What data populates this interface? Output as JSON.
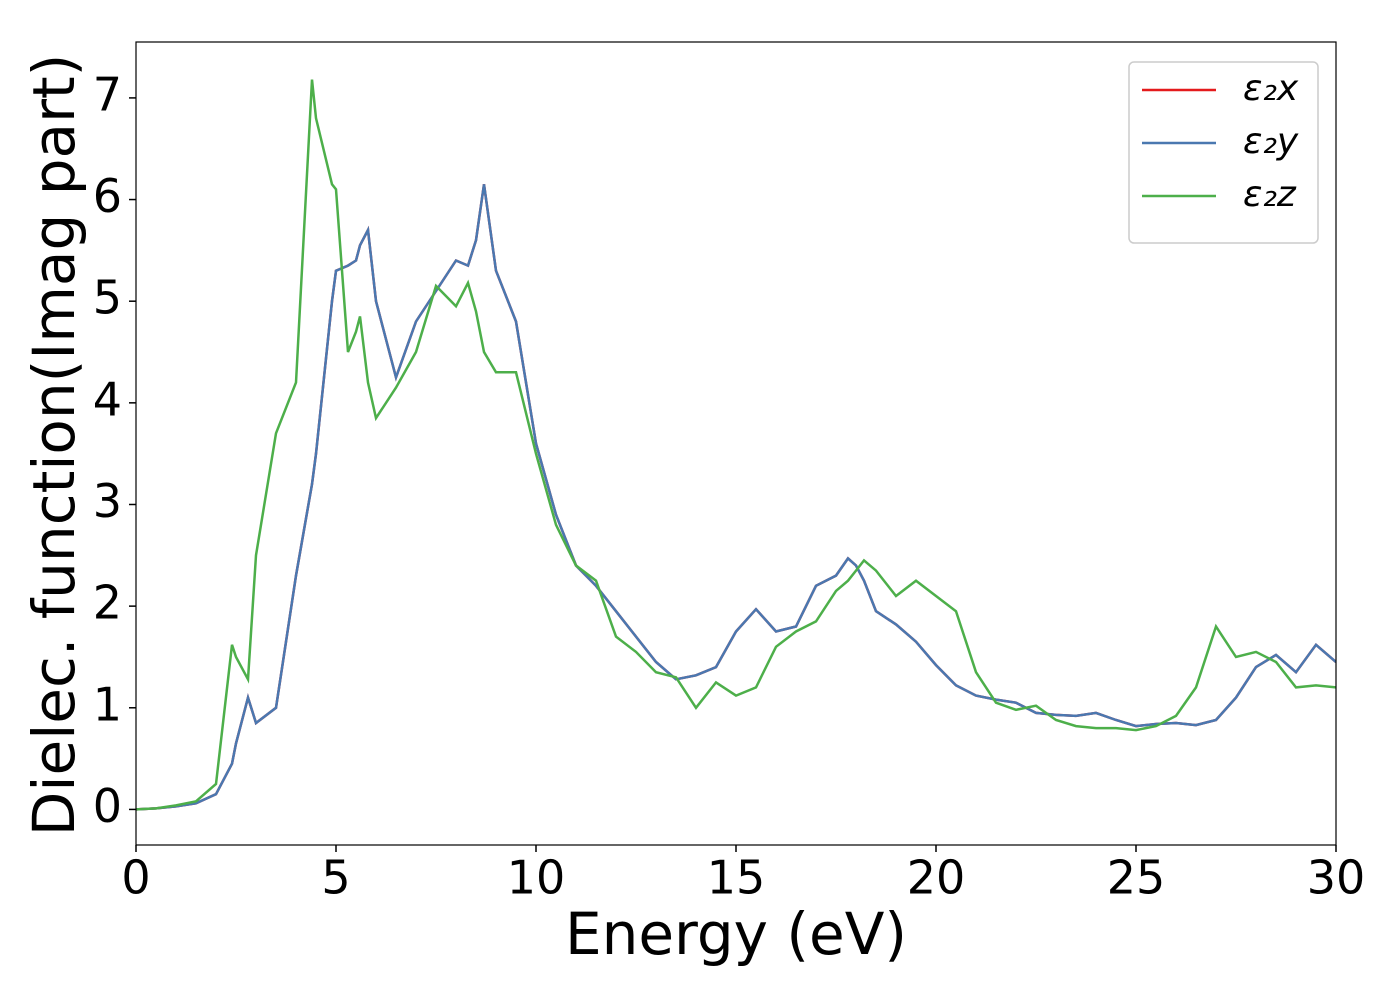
{
  "chart_data": {
    "type": "line",
    "x_label": "Energy (eV)",
    "y_label": "Dielec. function(Imag part)",
    "xlim": [
      0,
      30
    ],
    "ylim": [
      -0.35,
      7.55
    ],
    "xticks": [
      0,
      5,
      10,
      15,
      20,
      25,
      30
    ],
    "yticks": [
      0,
      1,
      2,
      3,
      4,
      5,
      6,
      7
    ],
    "legend": "upper right",
    "x": [
      0,
      0.5,
      1,
      1.5,
      2,
      2.4,
      2.5,
      2.8,
      3,
      3.5,
      4,
      4.4,
      4.5,
      4.9,
      5,
      5.3,
      5.5,
      5.6,
      5.8,
      6,
      6.5,
      7,
      7.5,
      8,
      8.3,
      8.5,
      8.7,
      9,
      9.5,
      10,
      10.5,
      11,
      11.5,
      12,
      12.5,
      13,
      13.5,
      14,
      14.5,
      15,
      15.5,
      16,
      16.5,
      17,
      17.5,
      17.8,
      18,
      18.2,
      18.5,
      19,
      19.5,
      20,
      20.5,
      21,
      21.5,
      22,
      22.5,
      23,
      23.5,
      24,
      24.5,
      25,
      25.5,
      26,
      26.5,
      27,
      27.5,
      28,
      28.5,
      29,
      29.5,
      30
    ],
    "series": [
      {
        "name": "ε₂x",
        "color": "#e41a1c",
        "values": [
          0,
          0.01,
          0.03,
          0.06,
          0.15,
          0.45,
          0.65,
          1.1,
          0.85,
          1.0,
          2.3,
          3.2,
          3.5,
          5.0,
          5.3,
          5.35,
          5.4,
          5.55,
          5.7,
          5.0,
          4.25,
          4.8,
          5.1,
          5.4,
          5.35,
          5.6,
          6.15,
          5.3,
          4.8,
          3.6,
          2.9,
          2.4,
          2.2,
          1.95,
          1.7,
          1.45,
          1.28,
          1.32,
          1.4,
          1.75,
          1.97,
          1.75,
          1.8,
          2.2,
          2.3,
          2.47,
          2.4,
          2.25,
          1.95,
          1.82,
          1.65,
          1.42,
          1.22,
          1.12,
          1.08,
          1.05,
          0.95,
          0.93,
          0.92,
          0.95,
          0.88,
          0.82,
          0.84,
          0.85,
          0.83,
          0.88,
          1.1,
          1.4,
          1.52,
          1.35,
          1.62,
          1.45
        ]
      },
      {
        "name": "ε₂y",
        "color": "#4a78b0",
        "values": [
          0,
          0.01,
          0.03,
          0.06,
          0.15,
          0.45,
          0.65,
          1.1,
          0.85,
          1.0,
          2.3,
          3.2,
          3.5,
          5.0,
          5.3,
          5.35,
          5.4,
          5.55,
          5.7,
          5.0,
          4.25,
          4.8,
          5.1,
          5.4,
          5.35,
          5.6,
          6.15,
          5.3,
          4.8,
          3.6,
          2.9,
          2.4,
          2.2,
          1.95,
          1.7,
          1.45,
          1.28,
          1.32,
          1.4,
          1.75,
          1.97,
          1.75,
          1.8,
          2.2,
          2.3,
          2.47,
          2.4,
          2.25,
          1.95,
          1.82,
          1.65,
          1.42,
          1.22,
          1.12,
          1.08,
          1.05,
          0.95,
          0.93,
          0.92,
          0.95,
          0.88,
          0.82,
          0.84,
          0.85,
          0.83,
          0.88,
          1.1,
          1.4,
          1.52,
          1.35,
          1.62,
          1.45
        ]
      },
      {
        "name": "ε₂z",
        "color": "#4daf4a",
        "values": [
          0,
          0.01,
          0.04,
          0.08,
          0.25,
          1.62,
          1.5,
          1.28,
          2.5,
          3.7,
          4.2,
          7.18,
          6.8,
          6.15,
          6.1,
          4.5,
          4.7,
          4.85,
          4.2,
          3.85,
          4.15,
          4.5,
          5.15,
          4.95,
          5.18,
          4.9,
          4.5,
          4.3,
          4.3,
          3.5,
          2.8,
          2.4,
          2.25,
          1.7,
          1.55,
          1.35,
          1.3,
          1.0,
          1.25,
          1.12,
          1.2,
          1.6,
          1.75,
          1.85,
          2.15,
          2.25,
          2.35,
          2.45,
          2.35,
          2.1,
          2.25,
          2.1,
          1.95,
          1.35,
          1.05,
          0.98,
          1.02,
          0.88,
          0.82,
          0.8,
          0.8,
          0.78,
          0.82,
          0.92,
          1.2,
          1.8,
          1.5,
          1.55,
          1.45,
          1.2,
          1.22,
          1.2
        ]
      }
    ]
  }
}
